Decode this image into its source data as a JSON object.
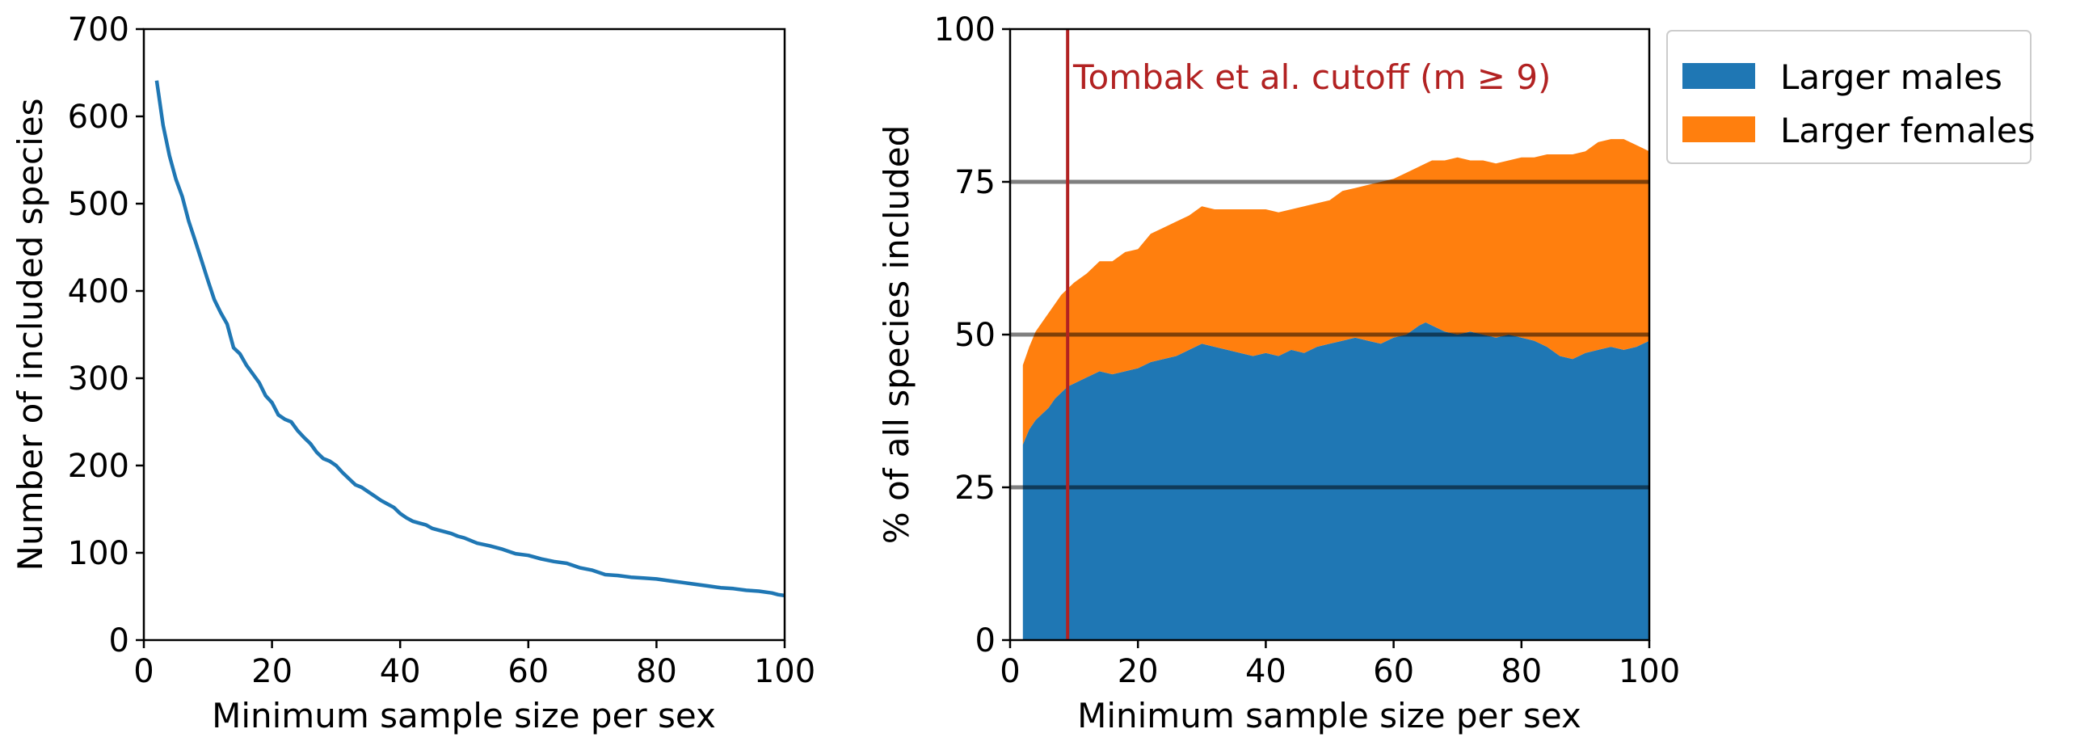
{
  "chart_data": [
    {
      "type": "line",
      "title": "",
      "xlabel": "Minimum sample size per sex",
      "ylabel": "Number of included species",
      "xlim": [
        0,
        100
      ],
      "ylim": [
        0,
        700
      ],
      "xticks": [
        0,
        20,
        40,
        60,
        80,
        100
      ],
      "yticks": [
        0,
        100,
        200,
        300,
        400,
        500,
        600,
        700
      ],
      "grid": false,
      "legend": "none",
      "series": [
        {
          "color": "#1f77b4",
          "x": [
            2,
            3,
            4,
            5,
            6,
            7,
            8,
            9,
            10,
            11,
            12,
            13,
            14,
            15,
            16,
            17,
            18,
            19,
            20,
            21,
            22,
            23,
            24,
            25,
            26,
            27,
            28,
            29,
            30,
            31,
            32,
            33,
            34,
            35,
            36,
            37,
            38,
            39,
            40,
            41,
            42,
            43,
            44,
            45,
            46,
            47,
            48,
            49,
            50,
            52,
            54,
            56,
            58,
            60,
            62,
            64,
            66,
            68,
            70,
            72,
            74,
            76,
            78,
            80,
            82,
            84,
            86,
            88,
            90,
            92,
            94,
            96,
            98,
            99,
            100
          ],
          "y": [
            641,
            590,
            555,
            528,
            508,
            480,
            458,
            435,
            412,
            390,
            375,
            362,
            335,
            328,
            315,
            305,
            295,
            280,
            272,
            258,
            253,
            250,
            240,
            232,
            225,
            215,
            208,
            205,
            200,
            192,
            185,
            178,
            175,
            170,
            165,
            160,
            156,
            152,
            145,
            140,
            136,
            134,
            132,
            128,
            126,
            124,
            122,
            119,
            117,
            111,
            108,
            104,
            99,
            97,
            93,
            90,
            88,
            83,
            80,
            75,
            74,
            72,
            71,
            70,
            68,
            66,
            64,
            62,
            60,
            59,
            57,
            56,
            54,
            52,
            51
          ]
        }
      ]
    },
    {
      "type": "area",
      "title": "",
      "xlabel": "Minimum sample size per sex",
      "ylabel": "% of all species included",
      "xlim": [
        0,
        100
      ],
      "ylim": [
        0,
        100
      ],
      "xticks": [
        0,
        20,
        40,
        60,
        80,
        100
      ],
      "yticks": [
        0,
        25,
        50,
        75,
        100
      ],
      "grid": false,
      "stacked": true,
      "legend": "outside-top-right",
      "x": [
        2,
        3,
        4,
        5,
        6,
        7,
        8,
        9,
        10,
        12,
        14,
        16,
        18,
        20,
        22,
        24,
        26,
        28,
        30,
        32,
        34,
        36,
        38,
        40,
        42,
        44,
        46,
        48,
        50,
        52,
        54,
        56,
        58,
        60,
        62,
        64,
        65,
        66,
        68,
        70,
        72,
        74,
        76,
        78,
        80,
        82,
        84,
        86,
        88,
        90,
        92,
        94,
        96,
        98,
        100
      ],
      "series": [
        {
          "name": "Larger males",
          "color": "#1f77b4",
          "values": [
            32,
            34.5,
            36,
            37,
            38,
            39.5,
            40.5,
            41.5,
            42,
            43,
            44,
            43.5,
            44,
            44.5,
            45.5,
            46,
            46.5,
            47.5,
            48.5,
            48,
            47.5,
            47,
            46.5,
            47,
            46.5,
            47.5,
            47,
            48,
            48.5,
            49,
            49.5,
            49,
            48.5,
            49.5,
            50,
            51.5,
            52,
            51.5,
            50.5,
            50,
            50.5,
            50,
            49.5,
            50,
            49.5,
            49,
            48,
            46.5,
            46,
            47,
            47.5,
            48,
            47.5,
            48,
            49
          ]
        },
        {
          "name": "Larger females",
          "color": "#ff7f0e",
          "values": [
            13,
            13.5,
            14.5,
            15,
            15.5,
            15.5,
            16,
            16,
            16.5,
            17,
            18,
            18.5,
            19.5,
            19.5,
            21,
            21.5,
            22,
            22,
            22.5,
            22.5,
            23,
            23.5,
            24,
            23.5,
            23.5,
            23,
            24,
            23.5,
            23.5,
            24.5,
            24.5,
            25.5,
            26.5,
            26,
            26.5,
            26,
            26,
            27,
            28,
            29,
            28,
            28.5,
            28.5,
            28.5,
            29.5,
            30,
            31.5,
            33,
            33.5,
            33,
            34,
            34,
            34.5,
            33,
            31
          ]
        }
      ],
      "reference_lines": [
        25,
        50,
        75
      ],
      "vline": {
        "x": 9,
        "color": "#b22222",
        "label": "Tombak et al. cutoff (m ≥ 9)"
      }
    }
  ]
}
